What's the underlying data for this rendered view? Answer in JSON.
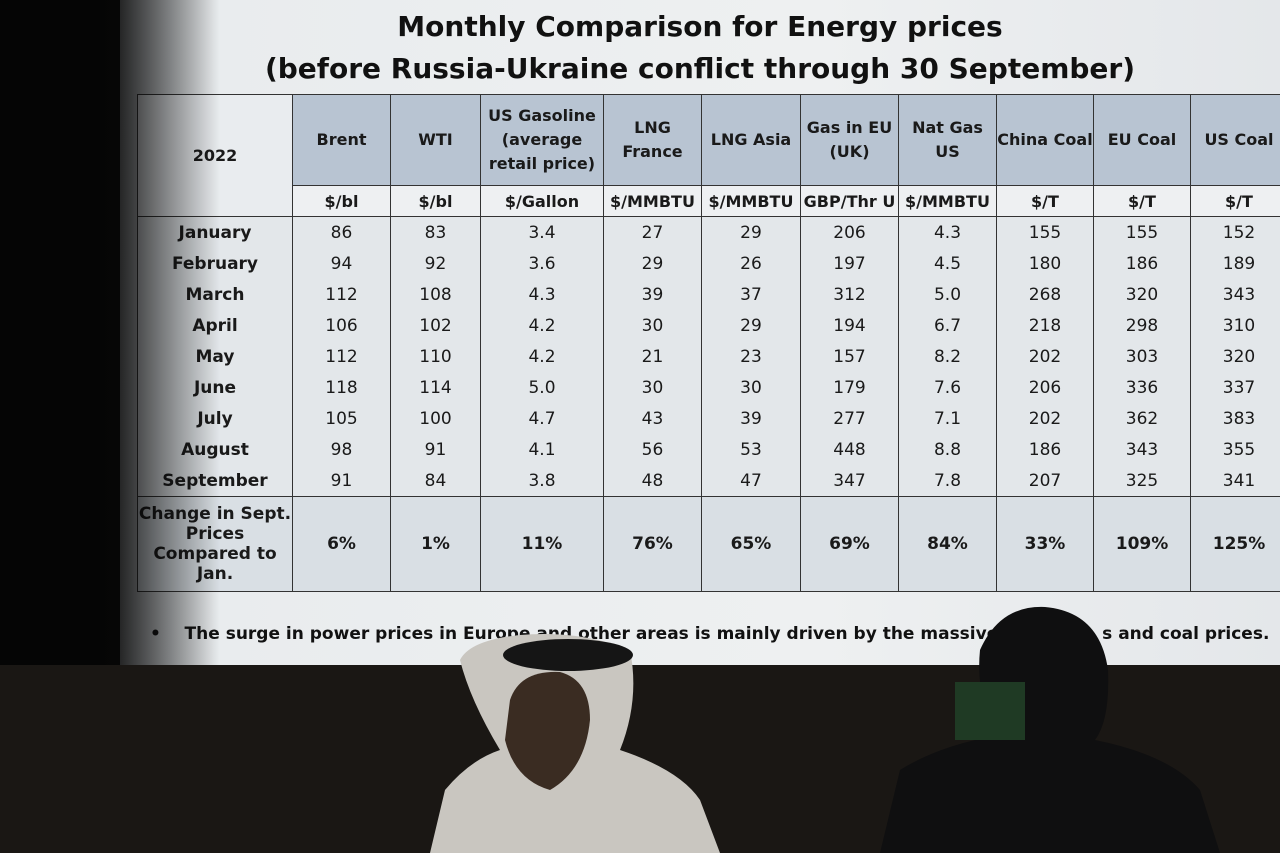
{
  "title": [
    "Monthly Comparison for Energy prices",
    "(before Russia-Ukraine conflict through 30 September)"
  ],
  "table": {
    "corner": "2022",
    "columns": [
      {
        "name": "Brent",
        "unit": "$/bl"
      },
      {
        "name": "WTI",
        "unit": "$/bl"
      },
      {
        "name": "US Gasoline (average retail price)",
        "unit": "$/Gallon"
      },
      {
        "name": "LNG France",
        "unit": "$/MMBTU"
      },
      {
        "name": "LNG Asia",
        "unit": "$/MMBTU"
      },
      {
        "name": "Gas in EU (UK)",
        "unit": "GBP/Thr U"
      },
      {
        "name": "Nat Gas US",
        "unit": "$/MMBTU"
      },
      {
        "name": "China Coal",
        "unit": "$/T"
      },
      {
        "name": "EU Coal",
        "unit": "$/T"
      },
      {
        "name": "US Coal",
        "unit": "$/T"
      }
    ],
    "rows": [
      {
        "label": "January",
        "cells": [
          "86",
          "83",
          "3.4",
          "27",
          "29",
          "206",
          "4.3",
          "155",
          "155",
          "152"
        ]
      },
      {
        "label": "February",
        "cells": [
          "94",
          "92",
          "3.6",
          "29",
          "26",
          "197",
          "4.5",
          "180",
          "186",
          "189"
        ]
      },
      {
        "label": "March",
        "cells": [
          "112",
          "108",
          "4.3",
          "39",
          "37",
          "312",
          "5.0",
          "268",
          "320",
          "343"
        ]
      },
      {
        "label": "April",
        "cells": [
          "106",
          "102",
          "4.2",
          "30",
          "29",
          "194",
          "6.7",
          "218",
          "298",
          "310"
        ]
      },
      {
        "label": "May",
        "cells": [
          "112",
          "110",
          "4.2",
          "21",
          "23",
          "157",
          "8.2",
          "202",
          "303",
          "320"
        ]
      },
      {
        "label": "June",
        "cells": [
          "118",
          "114",
          "5.0",
          "30",
          "30",
          "179",
          "7.6",
          "206",
          "336",
          "337"
        ]
      },
      {
        "label": "July",
        "cells": [
          "105",
          "100",
          "4.7",
          "43",
          "39",
          "277",
          "7.1",
          "202",
          "362",
          "383"
        ]
      },
      {
        "label": "August",
        "cells": [
          "98",
          "91",
          "4.1",
          "56",
          "53",
          "448",
          "8.8",
          "186",
          "343",
          "355"
        ]
      },
      {
        "label": "September",
        "cells": [
          "91",
          "84",
          "3.8",
          "48",
          "47",
          "347",
          "7.8",
          "207",
          "325",
          "341"
        ]
      }
    ],
    "change_row": {
      "label": "Change in Sept. Prices Compared to Jan.",
      "cells": [
        "6%",
        "1%",
        "11%",
        "76%",
        "65%",
        "69%",
        "84%",
        "33%",
        "109%",
        "125%"
      ]
    }
  },
  "bullet": [
    "The surge in power prices in Europe and other areas is mainly driven by the massive inc",
    "s and coal prices."
  ]
}
